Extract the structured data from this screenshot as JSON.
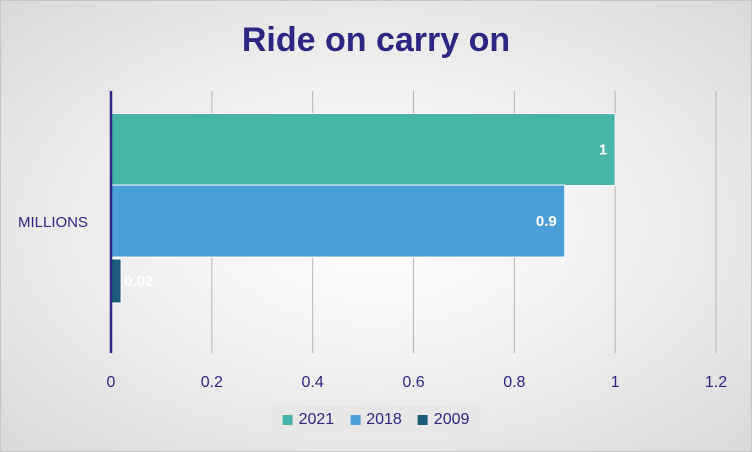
{
  "chart_data": {
    "type": "bar",
    "orientation": "horizontal",
    "title": "Ride on carry on",
    "categories": [
      "MILLIONS"
    ],
    "series": [
      {
        "name": "2021",
        "values": [
          1
        ],
        "color": "#46b5a5",
        "data_label": "1"
      },
      {
        "name": "2018",
        "values": [
          0.9
        ],
        "color": "#4a9fd6",
        "data_label": "0.9"
      },
      {
        "name": "2009",
        "values": [
          0.02
        ],
        "color": "#1c5b7a",
        "data_label": "0.02"
      }
    ],
    "xlim": [
      0,
      1.2
    ],
    "x_ticks": [
      "0",
      "0.2",
      "0.4",
      "0.6",
      "0.8",
      "1",
      "1.2"
    ],
    "grid": "vertical",
    "legend_position": "bottom",
    "axis_color": "#2e2683",
    "title_color": "#2e2683"
  }
}
